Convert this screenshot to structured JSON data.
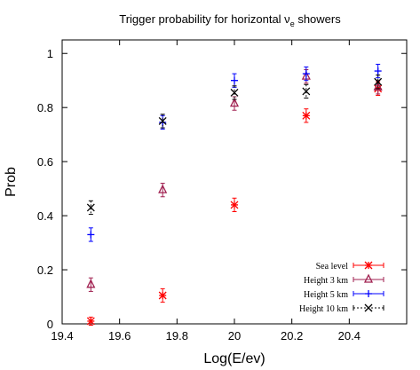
{
  "chart_data": {
    "type": "scatter",
    "title_main": "Trigger probability for horizontal ν",
    "title_sub": "e",
    "title_tail": " showers",
    "xlabel": "Log(E/ev)",
    "ylabel": "Prob",
    "xlim": [
      19.4,
      20.6
    ],
    "ylim": [
      0,
      1.05
    ],
    "xticks": [
      "19.4",
      "19.6",
      "19.8",
      "20",
      "20.2",
      "20.4"
    ],
    "yticks": [
      "0",
      "0.2",
      "0.4",
      "0.6",
      "0.8",
      "1"
    ],
    "legend_position": "bottom-right",
    "series": [
      {
        "name": "Sea level",
        "color": "#ff0000",
        "marker": "asterisk",
        "dash": "",
        "points": [
          {
            "x": 19.5,
            "y": 0.01,
            "err": 0.015
          },
          {
            "x": 19.75,
            "y": 0.105,
            "err": 0.025
          },
          {
            "x": 20.0,
            "y": 0.44,
            "err": 0.025
          },
          {
            "x": 20.25,
            "y": 0.77,
            "err": 0.025
          },
          {
            "x": 20.5,
            "y": 0.87,
            "err": 0.025
          }
        ]
      },
      {
        "name": "Height 3 km",
        "color": "#a02050",
        "marker": "triangle",
        "dash": "",
        "points": [
          {
            "x": 19.5,
            "y": 0.145,
            "err": 0.025
          },
          {
            "x": 19.75,
            "y": 0.495,
            "err": 0.025
          },
          {
            "x": 20.0,
            "y": 0.815,
            "err": 0.025
          },
          {
            "x": 20.25,
            "y": 0.915,
            "err": 0.025
          },
          {
            "x": 20.5,
            "y": 0.875,
            "err": 0.025
          }
        ]
      },
      {
        "name": "Height 5 km",
        "color": "#0000ff",
        "marker": "plus",
        "dash": "",
        "points": [
          {
            "x": 19.5,
            "y": 0.33,
            "err": 0.025
          },
          {
            "x": 19.75,
            "y": 0.745,
            "err": 0.025
          },
          {
            "x": 20.0,
            "y": 0.9,
            "err": 0.025
          },
          {
            "x": 20.25,
            "y": 0.925,
            "err": 0.025
          },
          {
            "x": 20.5,
            "y": 0.935,
            "err": 0.025
          }
        ]
      },
      {
        "name": "Height 10 km",
        "color": "#000000",
        "marker": "cross",
        "dash": "2,2",
        "points": [
          {
            "x": 19.5,
            "y": 0.43,
            "err": 0.025
          },
          {
            "x": 19.75,
            "y": 0.75,
            "err": 0.025
          },
          {
            "x": 20.0,
            "y": 0.855,
            "err": 0.025
          },
          {
            "x": 20.25,
            "y": 0.86,
            "err": 0.025
          },
          {
            "x": 20.5,
            "y": 0.895,
            "err": 0.025
          }
        ]
      }
    ]
  }
}
